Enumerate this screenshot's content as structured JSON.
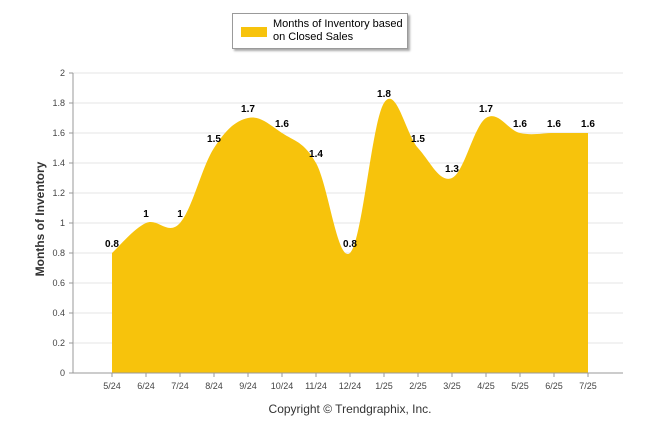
{
  "chart_data": {
    "type": "area",
    "title": "",
    "xlabel": "",
    "ylabel": "Months of Inventory",
    "ylim": [
      0,
      2
    ],
    "yticks": [
      "0",
      "0.2",
      "0.4",
      "0.6",
      "0.8",
      "1",
      "1.2",
      "1.4",
      "1.6",
      "1.8",
      "2"
    ],
    "categories": [
      "5/24",
      "6/24",
      "7/24",
      "8/24",
      "9/24",
      "10/24",
      "11/24",
      "12/24",
      "1/25",
      "2/25",
      "3/25",
      "4/25",
      "5/25",
      "6/25",
      "7/25"
    ],
    "series": [
      {
        "name": "Months of Inventory based on Closed Sales",
        "values": [
          0.8,
          1,
          1,
          1.5,
          1.7,
          1.6,
          1.4,
          0.8,
          1.8,
          1.5,
          1.3,
          1.7,
          1.6,
          1.6,
          1.6
        ],
        "labels": [
          "0.8",
          "1",
          "1",
          "1.5",
          "1.7",
          "1.6",
          "1.4",
          "0.8",
          "1.8",
          "1.5",
          "1.3",
          "1.7",
          "1.6",
          "1.6",
          "1.6"
        ],
        "color": "#F7C30C"
      }
    ],
    "legend_position": "top-center",
    "grid": true,
    "grid_color": "#e6e6e6",
    "axis_color": "#999999"
  },
  "copyright": "Copyright © Trendgraphix, Inc."
}
